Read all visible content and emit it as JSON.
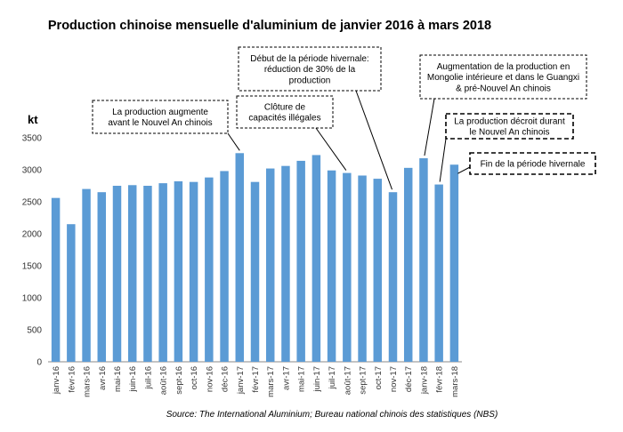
{
  "chart_data": {
    "type": "bar",
    "title": "Production chinoise mensuelle d'aluminium de janvier 2016 à mars 2018",
    "ylabel": "kt",
    "xlabel": "",
    "ylim": [
      0,
      3500
    ],
    "yticks": [
      0,
      500,
      1000,
      1500,
      2000,
      2500,
      3000,
      3500
    ],
    "grid": false,
    "bar_color": "#5b9bd5",
    "categories": [
      "janv-16",
      "févr-16",
      "mars-16",
      "avr-16",
      "mai-16",
      "juin-16",
      "juil-16",
      "août-16",
      "sept-16",
      "oct-16",
      "nov-16",
      "déc-16",
      "janv-17",
      "févr-17",
      "mars-17",
      "avr-17",
      "mai-17",
      "juin-17",
      "juil-17",
      "août-17",
      "sept-17",
      "oct-17",
      "nov-17",
      "déc-17",
      "janv-18",
      "févr-18",
      "mars-18"
    ],
    "values": [
      2560,
      2150,
      2700,
      2650,
      2750,
      2760,
      2750,
      2790,
      2820,
      2810,
      2880,
      2980,
      3260,
      2810,
      3020,
      3060,
      3140,
      3230,
      2990,
      2950,
      2910,
      2860,
      2650,
      3030,
      3180,
      2770,
      3080
    ],
    "annotations": [
      {
        "lines": [
          "La production augmente",
          "avant le Nouvel An chinois"
        ],
        "target": "janv-17",
        "style": "dashed"
      },
      {
        "lines": [
          "Clôture de",
          "capacités illégales"
        ],
        "target": "août-17",
        "style": "dashed"
      },
      {
        "lines": [
          "Début de la période hivernale:",
          "réduction de 30% de la",
          "production"
        ],
        "target": "nov-17",
        "style": "dashed"
      },
      {
        "lines": [
          "Augmentation de la production en",
          "Mongolie intérieure et dans le Guangxi",
          "& pré-Nouvel An chinois"
        ],
        "target": "janv-18",
        "style": "dashed"
      },
      {
        "lines": [
          "La production décroit durant",
          "le Nouvel An chinois"
        ],
        "target": "févr-18",
        "style": "bold-dashed"
      },
      {
        "lines": [
          "Fin de la période hivernale"
        ],
        "target": "mars-18",
        "style": "bold-dashed"
      }
    ],
    "source": "Source: The International Aluminium; Bureau national chinois des statistiques (NBS)"
  }
}
